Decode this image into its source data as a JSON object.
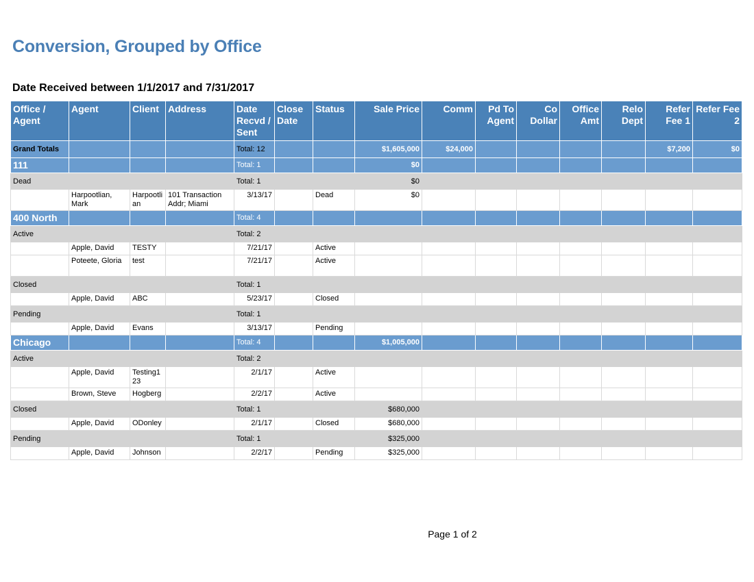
{
  "report": {
    "title": "Conversion, Grouped by Office",
    "subtitle": "Date Received between 1/1/2017 and 7/31/2017",
    "footer": "Page 1 of 2"
  },
  "headers": {
    "office_agent": "Office / Agent",
    "agent": "Agent",
    "client": "Client",
    "address": "Address",
    "date_recvd": "Date Recvd / Sent",
    "close_date": "Close Date",
    "status": "Status",
    "sale_price": "Sale Price",
    "comm": "Comm",
    "pd_to_agent": "Pd To Agent",
    "co_dollar": "Co Dollar",
    "office_amt": "Office Amt",
    "relo_dept": "Relo Dept",
    "refer_fee_1": "Refer Fee 1",
    "refer_fee_2": "Refer Fee 2"
  },
  "grand_totals": {
    "label": "Grand Totals",
    "total": "Total: 12",
    "sale_price": "$1,605,000",
    "comm": "$24,000",
    "refer_fee_1": "$7,200",
    "refer_fee_2": "$0"
  },
  "offices": [
    {
      "name": "111",
      "total": "Total: 1",
      "sale_price": "$0",
      "groups": [
        {
          "status": "Dead",
          "total": "Total: 1",
          "sale_price": "$0",
          "rows": [
            {
              "agent": "Harpootlian, Mark",
              "client": "Harpootlian",
              "address": "101 Transaction Addr; Miami",
              "date": "3/13/17",
              "status": "Dead",
              "sale_price": "$0"
            }
          ]
        }
      ]
    },
    {
      "name": "400 North",
      "total": "Total: 4",
      "sale_price": "",
      "groups": [
        {
          "status": "Active",
          "total": "Total: 2",
          "sale_price": "",
          "rows": [
            {
              "agent": "Apple, David",
              "client": "TESTY",
              "address": "",
              "date": "7/21/17",
              "status": "Active",
              "sale_price": ""
            },
            {
              "agent": "Poteete, Gloria",
              "client": "test",
              "address": "",
              "date": "7/21/17",
              "status": "Active",
              "sale_price": ""
            }
          ]
        },
        {
          "status": "Closed",
          "total": "Total: 1",
          "sale_price": "",
          "rows": [
            {
              "agent": "Apple, David",
              "client": "ABC",
              "address": "",
              "date": "5/23/17",
              "status": "Closed",
              "sale_price": ""
            }
          ]
        },
        {
          "status": "Pending",
          "total": "Total: 1",
          "sale_price": "",
          "rows": [
            {
              "agent": "Apple, David",
              "client": "Evans",
              "address": "",
              "date": "3/13/17",
              "status": "Pending",
              "sale_price": ""
            }
          ]
        }
      ]
    },
    {
      "name": "Chicago",
      "total": "Total: 4",
      "sale_price": "$1,005,000",
      "groups": [
        {
          "status": "Active",
          "total": "Total: 2",
          "sale_price": "",
          "rows": [
            {
              "agent": "Apple, David",
              "client": "Testing123",
              "address": "",
              "date": "2/1/17",
              "status": "Active",
              "sale_price": ""
            },
            {
              "agent": "Brown, Steve",
              "client": "Hogberg",
              "address": "",
              "date": "2/2/17",
              "status": "Active",
              "sale_price": ""
            }
          ]
        },
        {
          "status": "Closed",
          "total": "Total: 1",
          "sale_price": "$680,000",
          "rows": [
            {
              "agent": "Apple, David",
              "client": "ODonley",
              "address": "",
              "date": "2/1/17",
              "status": "Closed",
              "sale_price": "$680,000"
            }
          ]
        },
        {
          "status": "Pending",
          "total": "Total: 1",
          "sale_price": "$325,000",
          "rows": [
            {
              "agent": "Apple, David",
              "client": "Johnson",
              "address": "",
              "date": "2/2/17",
              "status": "Pending",
              "sale_price": "$325,000"
            }
          ]
        }
      ]
    }
  ]
}
